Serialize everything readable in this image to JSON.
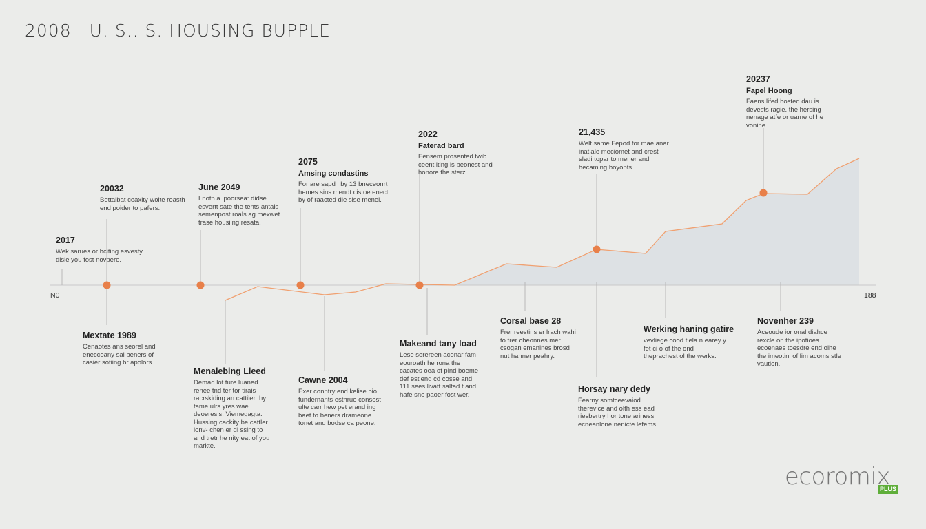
{
  "header": {
    "year": "2008",
    "title": "U. S.. S. HOUSING BUPPLE"
  },
  "axis": {
    "left_label": "N0",
    "right_label": "188"
  },
  "colors": {
    "background": "#ebecea",
    "line": "#f0a070",
    "marker": "#e8804a",
    "area": "#dde1e4",
    "connector": "#b8b8b8"
  },
  "events_above": [
    {
      "heading": "2017",
      "body": "Wek sarues or bciting esvesty disle you fost novpere."
    },
    {
      "heading": "20032",
      "body": "Bettaibat ceaxity wolte roasth end poider to pafers."
    },
    {
      "heading": "June 2049",
      "body": "Lnoth a ipoorsea: didse esvertt sate the tents antais semenpost roals ag mexwet trase housiing resata."
    },
    {
      "heading": "2075",
      "body": "Amsing condastins"
    },
    {
      "heading": "2022",
      "body": "Faterad bard"
    },
    {
      "heading": "21,435",
      "body": "Welt same Fepod for mae anar inatiale meciomet and crest sladi topar to mener and hecaming boyopts."
    },
    {
      "heading": "20237",
      "body": "Fapel Hoong"
    }
  ],
  "events_above_extra": {
    "amsing_body": "For are sapd i by 13 bneceonrt hemes sins mendt cis oe enect by of raacted die sise menel.",
    "faterad_body": "Eensem prosented twib ceent iting is beonest and honore the sterz.",
    "fapel_body": "Faens lifed hosted dau is devests ragie. the hersing nenage atfe or uarne of he vonine."
  },
  "events_below": [
    {
      "heading": "Mextate 1989",
      "body": "Cenaotes ans seorel and eneccoany sal beners of casier sotiing br apolors."
    },
    {
      "heading": "Menalebing Lleed",
      "body": "Demad lot ture luaned renee tnd ter tor tirais racrskiding an cattiler thy tame ulrs yres wae deoeresis. Viemegagta. Hussing cackity be cattler lonv- chen er dl ssing to and tretr he nity eat of you markte."
    },
    {
      "heading": "Cawne 2004",
      "body": "Exer conntry end kelise bio fundernants esthrue consost ulte carr hew pet erand ing baet to beners drameone tonet and bodse ca peone."
    },
    {
      "heading": "Makeand tany load",
      "body": "Lese serereen aconar fam eouroath he rona the cacates oea of pind boeme def estlend cd cosse and 111 sees livatt saltad t and hafe sne paoer fost wer."
    },
    {
      "heading": "Corsal base 28",
      "body": "Frer reestins er lrach wahi to trer cheonnes mer csogan emanines brosd nut hanner peahry."
    },
    {
      "heading": "Horsay nary dedy",
      "body": "Fearny somtceevaiod therevice and olth ess ead riesbertry hor tone ariness ecneanlone nenicte lefems."
    },
    {
      "heading": "Werking haning gatire",
      "body": "vevliege cood tiela n earey y fet ci o of the ond theprachest ol the werks."
    },
    {
      "heading": "Novenher 239",
      "body": "Aceoude ior onal diahce rexcle on the ipotioes ecoenaes toesdre end olhe the imeotini of lim acoms stle vaution."
    }
  ],
  "logo": {
    "name": "ecoromix",
    "badge": "PLUS"
  },
  "chart_data": {
    "type": "area",
    "title": "U. S.. S. HOUSING BUPPLE",
    "xlabel": "",
    "ylabel": "",
    "x_range_labels": [
      "N0",
      "188"
    ],
    "line_points": [
      [
        0,
        0
      ],
      [
        1,
        -0.6
      ],
      [
        2,
        -0.1
      ],
      [
        3,
        -0.3
      ],
      [
        4,
        -0.2
      ],
      [
        5,
        0.05
      ],
      [
        6,
        0.0
      ],
      [
        7,
        0.6
      ],
      [
        8,
        0.5
      ],
      [
        9,
        1.2
      ],
      [
        10,
        1.1
      ],
      [
        11,
        1.9
      ],
      [
        12,
        2.1
      ],
      [
        13,
        2.9
      ],
      [
        14,
        3.1
      ],
      [
        15,
        3.7
      ],
      [
        16,
        4.3
      ]
    ],
    "markers": [
      "2017-ish point",
      "June 2049",
      "2075",
      "2022",
      "21,435",
      "20237"
    ],
    "grid": false,
    "legend": "none"
  }
}
